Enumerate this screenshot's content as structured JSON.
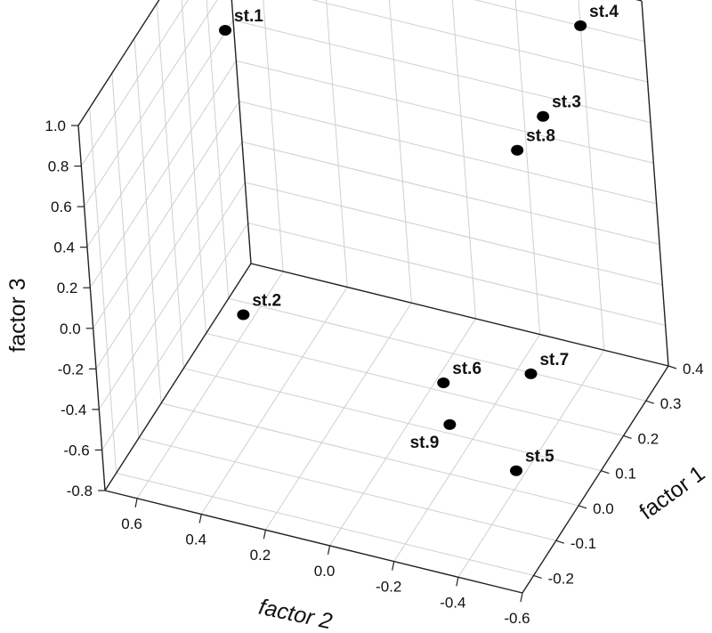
{
  "chart_data": {
    "type": "scatter",
    "projection": "3d",
    "title": "",
    "xlabel": "factor 2",
    "ylabel": "factor 1",
    "zlabel": "factor 3",
    "x_ticks": [
      "0.6",
      "0.4",
      "0.2",
      "0.0",
      "-0.2",
      "-0.4",
      "-0.6"
    ],
    "y_ticks": [
      "-0.2",
      "-0.1",
      "0.0",
      "0.1",
      "0.2",
      "0.3",
      "0.4"
    ],
    "z_ticks": [
      "1.0",
      "0.8",
      "0.6",
      "0.4",
      "0.2",
      "0.0",
      "-0.2",
      "-0.4",
      "-0.6",
      "-0.8"
    ],
    "xlim": [
      0.7,
      -0.6
    ],
    "ylim": [
      -0.25,
      0.4
    ],
    "zlim": [
      -0.8,
      1.0
    ],
    "grid": true,
    "points": [
      {
        "label": "st.1",
        "x": 0.45,
        "y": 0.05,
        "z": 1.05
      },
      {
        "label": "st.2",
        "x": 0.3,
        "y": -0.15,
        "z": 0.05
      },
      {
        "label": "st.3",
        "x": -0.3,
        "y": 0.35,
        "z": 0.4
      },
      {
        "label": "st.4",
        "x": -0.4,
        "y": 0.4,
        "z": 0.8
      },
      {
        "label": "st.5",
        "x": -0.45,
        "y": -0.05,
        "z": -0.6
      },
      {
        "label": "st.6",
        "x": -0.2,
        "y": 0.0,
        "z": -0.35
      },
      {
        "label": "st.7",
        "x": -0.4,
        "y": 0.1,
        "z": -0.4
      },
      {
        "label": "st.8",
        "x": -0.25,
        "y": 0.3,
        "z": 0.3
      },
      {
        "label": "st.9",
        "x": -0.25,
        "y": -0.05,
        "z": -0.45
      }
    ]
  }
}
